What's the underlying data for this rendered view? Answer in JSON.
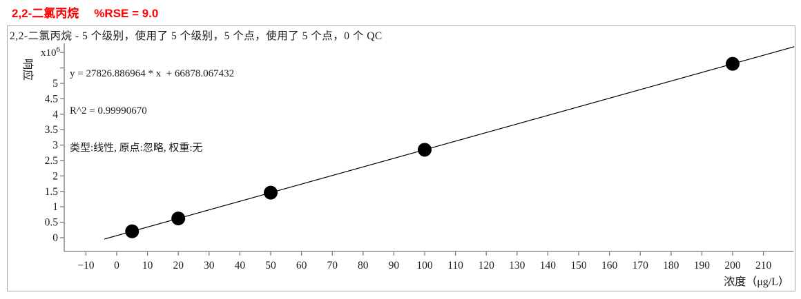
{
  "title": {
    "compound": "2,2-二氯丙烷",
    "rse": "%RSE = 9.0"
  },
  "subtitle": "2,2-二氯丙烷 - 5 个级别，使用了 5 个级别，5 个点，使用了 5 个点，0 个 QC",
  "stats": {
    "equation": "y = 27826.886964 * x  + 66878.067432",
    "r_squared": "R^2 = 0.99990670",
    "fit_description": "类型:线性, 原点:忽略, 权重:无"
  },
  "axes": {
    "y_label": "响应",
    "y_multiplier_base": "x10",
    "y_multiplier_exp": "6",
    "x_label": "浓度（μg/L）"
  },
  "chart_data": {
    "type": "scatter",
    "title": "2,2-二氯丙烷 %RSE = 9.0",
    "xlabel": "浓度（μg/L）",
    "ylabel": "响应 (x10^6)",
    "x": [
      5,
      20,
      50,
      100,
      200
    ],
    "y": [
      206012,
      623416,
      1458222,
      2849567,
      5632255
    ],
    "fit_line": {
      "type_label": "线性",
      "slope": 27826.886964,
      "intercept": 66878.067432,
      "r2": 0.9999067,
      "x_draw_range": [
        -4,
        220
      ]
    },
    "x_ticks": [
      -10,
      0,
      10,
      20,
      30,
      40,
      50,
      60,
      70,
      80,
      90,
      100,
      110,
      120,
      130,
      140,
      150,
      160,
      170,
      180,
      190,
      200,
      210
    ],
    "y_ticks_labeled": [
      0,
      0.5,
      1,
      1.5,
      2,
      2.5,
      3,
      3.5,
      4,
      4.5,
      5
    ],
    "y_ticks_unlabeled": [
      5.5,
      6
    ],
    "y_unit_scale": 1000000,
    "xlim": [
      -17,
      221
    ],
    "ylim_in_units": [
      -0.45,
      6.3
    ],
    "grid": false,
    "legend": "none",
    "marker": {
      "shape": "circle",
      "radius": 10,
      "color": "#000000"
    }
  },
  "colors": {
    "title": "#ff0000",
    "text": "#1a1a1a",
    "axis": "#7a7a7a",
    "fit_line": "#000000",
    "point": "#000000",
    "panel_border": "#a6a6a6",
    "background": "#ffffff"
  }
}
